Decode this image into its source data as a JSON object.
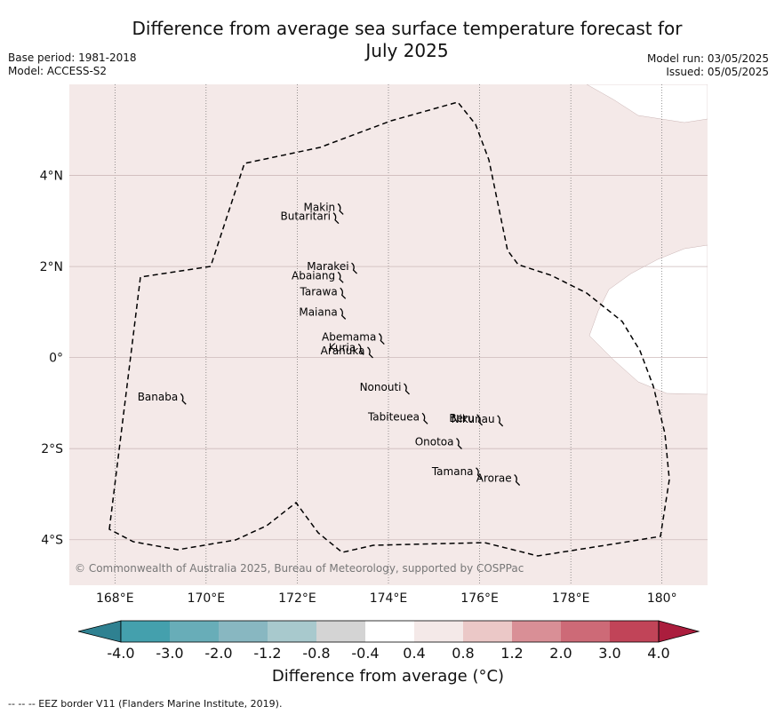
{
  "title": "Difference from average sea surface temperature forecast for July 2025",
  "title_line1": "Difference from average sea surface temperature forecast for",
  "title_line2": "July 2025",
  "base_period": "Base period: 1981-2018",
  "model": "Model: ACCESS-S2",
  "model_run": "Model run: 03/05/2025",
  "issued": "Issued: 05/05/2025",
  "map": {
    "extent": {
      "lon": [
        167,
        181
      ],
      "lat": [
        -5,
        6
      ]
    },
    "lon_ticks": [
      {
        "value": 168,
        "label": "168°E"
      },
      {
        "value": 170,
        "label": "170°E"
      },
      {
        "value": 172,
        "label": "172°E"
      },
      {
        "value": 174,
        "label": "174°E"
      },
      {
        "value": 176,
        "label": "176°E"
      },
      {
        "value": 178,
        "label": "178°E"
      },
      {
        "value": 180,
        "label": "180°"
      }
    ],
    "lat_ticks": [
      {
        "value": 4,
        "label": "4°N"
      },
      {
        "value": 2,
        "label": "2°N"
      },
      {
        "value": 0,
        "label": "0°"
      },
      {
        "value": -2,
        "label": "2°S"
      },
      {
        "value": -4,
        "label": "4°S"
      }
    ],
    "background_category": "0.4 to 0.8",
    "background_color": "#f4e9e8",
    "islands": [
      {
        "name": "Makin",
        "lon": 172.95,
        "lat": 3.3
      },
      {
        "name": "Butaritari",
        "lon": 172.85,
        "lat": 3.1
      },
      {
        "name": "Marakei",
        "lon": 173.25,
        "lat": 2.0
      },
      {
        "name": "Abaiang",
        "lon": 172.95,
        "lat": 1.8
      },
      {
        "name": "Tarawa",
        "lon": 173.0,
        "lat": 1.45
      },
      {
        "name": "Maiana",
        "lon": 173.0,
        "lat": 1.0
      },
      {
        "name": "Abemama",
        "lon": 173.85,
        "lat": 0.45
      },
      {
        "name": "Kuria",
        "lon": 173.4,
        "lat": 0.22
      },
      {
        "name": "Aranuka",
        "lon": 173.6,
        "lat": 0.15
      },
      {
        "name": "Banaba",
        "lon": 169.5,
        "lat": -0.87
      },
      {
        "name": "Nonouti",
        "lon": 174.4,
        "lat": -0.65
      },
      {
        "name": "Tabiteuea",
        "lon": 174.8,
        "lat": -1.3
      },
      {
        "name": "Beru",
        "lon": 176.0,
        "lat": -1.33
      },
      {
        "name": "Nikunau",
        "lon": 176.45,
        "lat": -1.35
      },
      {
        "name": "Onotoa",
        "lon": 175.55,
        "lat": -1.85
      },
      {
        "name": "Tamana",
        "lon": 175.98,
        "lat": -2.5
      },
      {
        "name": "Arorae",
        "lon": 176.82,
        "lat": -2.65
      }
    ],
    "copyright": "© Commonwealth of Australia 2025, Bureau of Meteorology, supported by COSPPac"
  },
  "colorbar": {
    "title": "Difference from average (°C)",
    "tick_labels": [
      "-4.0",
      "-3.0",
      "-2.0",
      "-1.2",
      "-0.8",
      "-0.4",
      "0.4",
      "0.8",
      "1.2",
      "2.0",
      "3.0",
      "4.0"
    ],
    "colors": [
      "#2f8191",
      "#44a0ad",
      "#68adb8",
      "#88b7c1",
      "#a8c9cd",
      "#d4d4d4",
      "#ffffff",
      "#f4e9e8",
      "#ebc8c7",
      "#d98f96",
      "#cd6a77",
      "#c14458",
      "#ab1d3d"
    ]
  },
  "footnote": "-- -- -- EEZ border V11 (Flanders Marine Institute, 2019)."
}
